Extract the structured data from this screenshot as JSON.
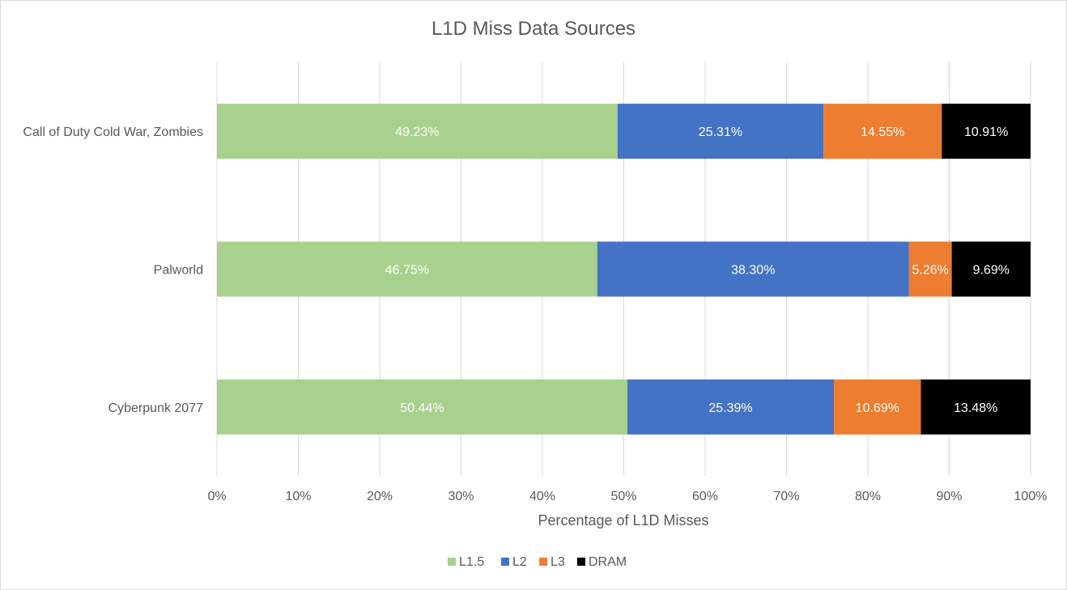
{
  "chart_data": {
    "type": "bar",
    "orientation": "horizontal",
    "stacked": "percent",
    "title": "L1D Miss Data Sources",
    "xlabel": "Percentage of L1D Misses",
    "ylabel": "",
    "xlim": [
      0,
      100
    ],
    "x_ticks": [
      "0%",
      "10%",
      "20%",
      "30%",
      "40%",
      "50%",
      "60%",
      "70%",
      "80%",
      "90%",
      "100%"
    ],
    "grid": true,
    "legend_position": "bottom",
    "categories": [
      "Call of Duty Cold War, Zombies",
      "Palworld",
      "Cyberpunk 2077"
    ],
    "series": [
      {
        "name": "L1.5",
        "color": "#a9d18e",
        "values": [
          49.23,
          46.75,
          50.44
        ],
        "labels": [
          "49.23%",
          "46.75%",
          "50.44%"
        ]
      },
      {
        "name": "L2",
        "color": "#4472c4",
        "values": [
          25.31,
          38.3,
          25.39
        ],
        "labels": [
          "25.31%",
          "38.30%",
          "25.39%"
        ]
      },
      {
        "name": "L3",
        "color": "#ed7d31",
        "values": [
          14.55,
          5.26,
          10.69
        ],
        "labels": [
          "14.55%",
          "5.26%",
          "10.69%"
        ]
      },
      {
        "name": "DRAM",
        "color": "#000000",
        "values": [
          10.91,
          9.69,
          13.48
        ],
        "labels": [
          "10.91%",
          "9.69%",
          "13.48%"
        ]
      }
    ]
  }
}
